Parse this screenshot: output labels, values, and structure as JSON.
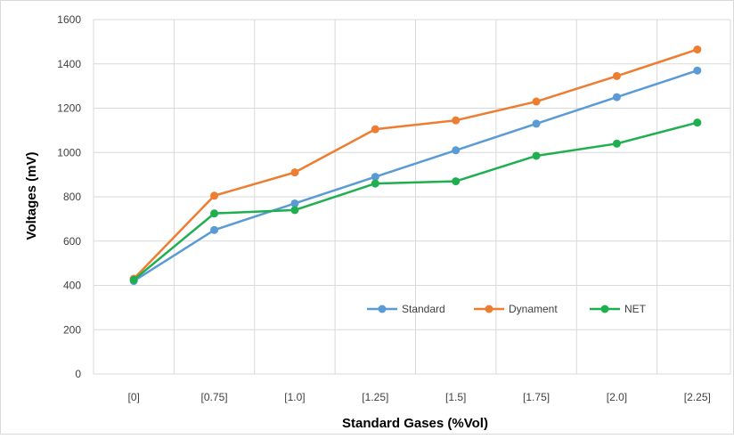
{
  "chart_data": {
    "type": "line",
    "title": "",
    "xlabel": "Standard Gases (%Vol)",
    "ylabel": "Voltages (mV)",
    "categories": [
      "[0]",
      "[0.75]",
      "[1.0]",
      "[1.25]",
      "[1.5]",
      "[1.75]",
      "[2.0]",
      "[2.25]"
    ],
    "ylim": [
      0,
      1600
    ],
    "yticks": [
      0,
      200,
      400,
      600,
      800,
      1000,
      1200,
      1400,
      1600
    ],
    "grid": "both",
    "legend_position": "bottom-right",
    "series": [
      {
        "name": "Standard",
        "color": "#5B9BD5",
        "values": [
          420,
          650,
          770,
          890,
          1010,
          1130,
          1250,
          1370
        ]
      },
      {
        "name": "Dynament",
        "color": "#ED7D31",
        "values": [
          430,
          805,
          910,
          1105,
          1145,
          1230,
          1345,
          1465
        ]
      },
      {
        "name": "NET",
        "color": "#1FAF50",
        "values": [
          425,
          725,
          740,
          860,
          870,
          985,
          1040,
          1135
        ]
      }
    ]
  }
}
